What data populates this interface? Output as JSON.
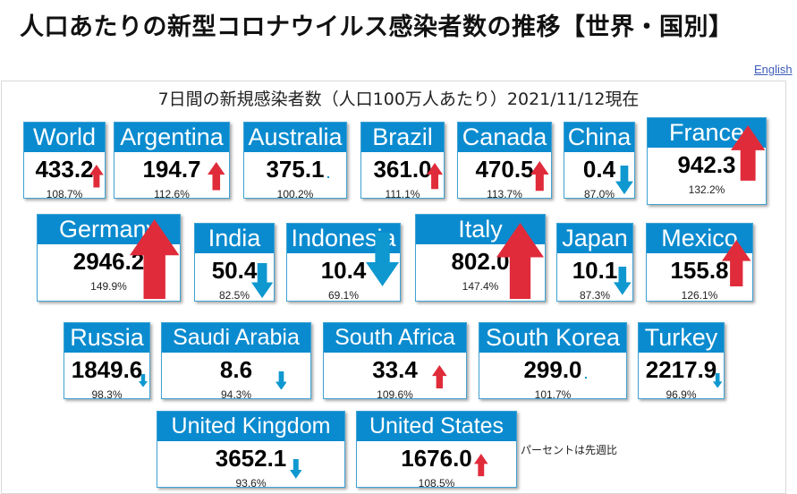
{
  "page": {
    "title": "人口あたりの新型コロナウイルス感染者数の推移【世界・国別】",
    "language_link": "English",
    "subtitle": "7日間の新規感染者数（人口100万人あたり）2021/11/12現在",
    "note": "パーセントは先週比"
  },
  "colors": {
    "header": "#0b8bcf",
    "up": "#e02b3a",
    "down": "#0f98d0"
  },
  "cards": [
    {
      "name": "World",
      "value": "433.2",
      "pct": "108.7%",
      "trend": "up"
    },
    {
      "name": "Argentina",
      "value": "194.7",
      "pct": "112.6%",
      "trend": "up"
    },
    {
      "name": "Australia",
      "value": "375.1",
      "pct": "100.2%",
      "trend": "flat"
    },
    {
      "name": "Brazil",
      "value": "361.0",
      "pct": "111.1%",
      "trend": "up"
    },
    {
      "name": "Canada",
      "value": "470.5",
      "pct": "113.7%",
      "trend": "up"
    },
    {
      "name": "China",
      "value": "0.4",
      "pct": "87.0%",
      "trend": "down"
    },
    {
      "name": "France",
      "value": "942.3",
      "pct": "132.2%",
      "trend": "up"
    },
    {
      "name": "Germany",
      "value": "2946.2",
      "pct": "149.9%",
      "trend": "up"
    },
    {
      "name": "India",
      "value": "50.4",
      "pct": "82.5%",
      "trend": "down"
    },
    {
      "name": "Indonesia",
      "value": "10.4",
      "pct": "69.1%",
      "trend": "down"
    },
    {
      "name": "Italy",
      "value": "802.0",
      "pct": "147.4%",
      "trend": "up"
    },
    {
      "name": "Japan",
      "value": "10.1",
      "pct": "87.3%",
      "trend": "down"
    },
    {
      "name": "Mexico",
      "value": "155.8",
      "pct": "126.1%",
      "trend": "up"
    },
    {
      "name": "Russia",
      "value": "1849.6",
      "pct": "98.3%",
      "trend": "down"
    },
    {
      "name": "Saudi Arabia",
      "value": "8.6",
      "pct": "94.3%",
      "trend": "down"
    },
    {
      "name": "South Africa",
      "value": "33.4",
      "pct": "109.6%",
      "trend": "up"
    },
    {
      "name": "South Korea",
      "value": "299.0",
      "pct": "101.7%",
      "trend": "flat"
    },
    {
      "name": "Turkey",
      "value": "2217.9",
      "pct": "96.9%",
      "trend": "down"
    },
    {
      "name": "United Kingdom",
      "value": "3652.1",
      "pct": "93.6%",
      "trend": "down"
    },
    {
      "name": "United States",
      "value": "1676.0",
      "pct": "108.5%",
      "trend": "up"
    }
  ]
}
